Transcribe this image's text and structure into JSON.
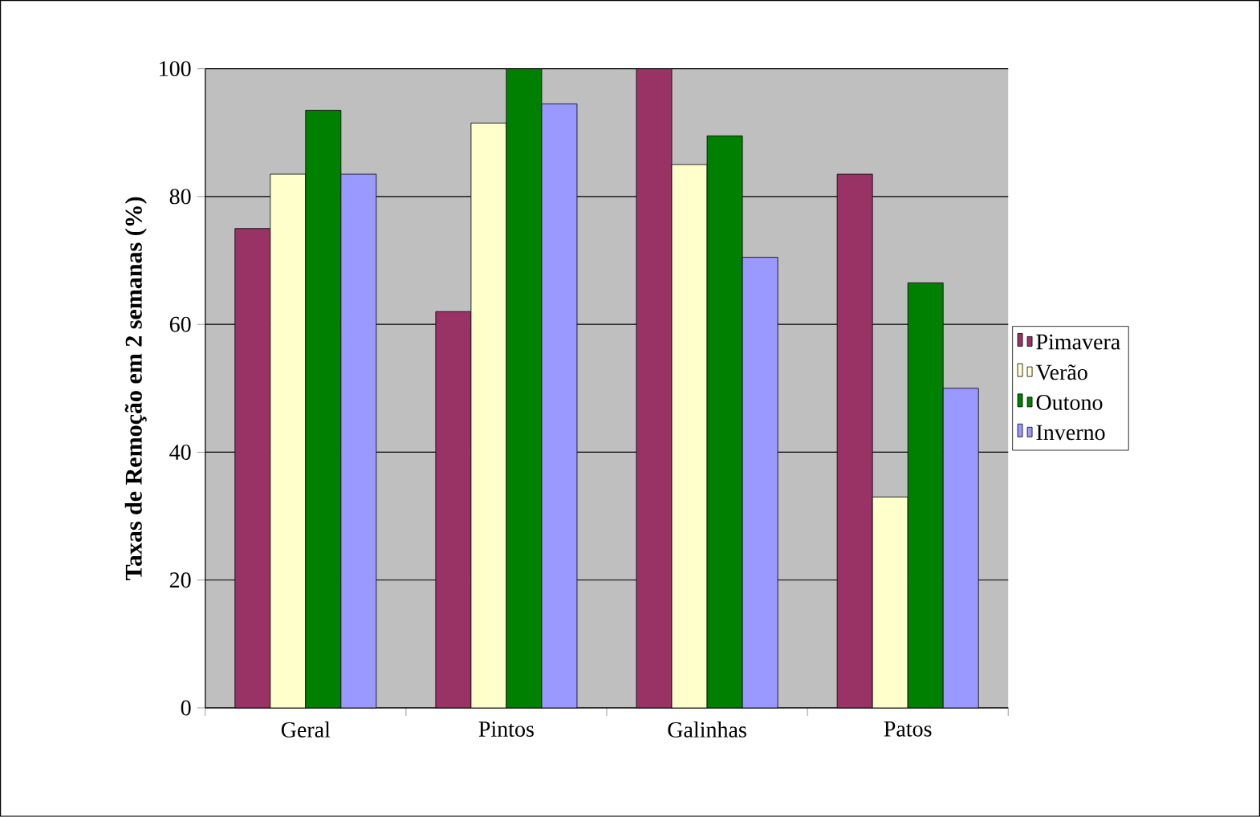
{
  "chart_data": {
    "type": "bar",
    "ylabel": "Taxas de Remoção em 2 semanas (%)",
    "categories": [
      "Geral",
      "Pintos",
      "Galinhas",
      "Patos"
    ],
    "series": [
      {
        "name": "Pimavera",
        "color": "#993366",
        "values": [
          75,
          62,
          100,
          83.5
        ]
      },
      {
        "name": "Verão",
        "color": "#ffffcc",
        "values": [
          83.5,
          91.5,
          85,
          33
        ]
      },
      {
        "name": "Outono",
        "color": "#008000",
        "values": [
          93.5,
          100,
          89.5,
          66.5
        ]
      },
      {
        "name": "Inverno",
        "color": "#9999ff",
        "values": [
          83.5,
          94.5,
          70.5,
          50
        ]
      }
    ],
    "ylim": [
      0,
      100
    ],
    "yticks": [
      0,
      20,
      40,
      60,
      80,
      100
    ],
    "grid": "y",
    "legend": "right"
  }
}
